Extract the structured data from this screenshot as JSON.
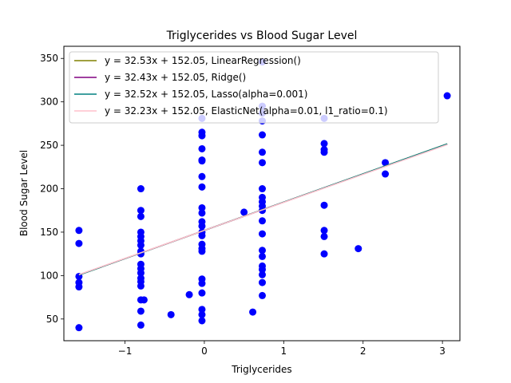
{
  "chart_data": {
    "type": "scatter",
    "title": "Triglycerides vs Blood Sugar Level",
    "xlabel": "Triglycerides",
    "ylabel": "Blood Sugar Level",
    "xlim": [
      -1.77,
      3.22
    ],
    "ylim": [
      25,
      364
    ],
    "xticks": [
      -1,
      0,
      1,
      2,
      3
    ],
    "xtick_labels": [
      "−1",
      "0",
      "1",
      "2",
      "3"
    ],
    "yticks": [
      50,
      100,
      150,
      200,
      250,
      300,
      350
    ],
    "ytick_labels": [
      "50",
      "100",
      "150",
      "200",
      "250",
      "300",
      "350"
    ],
    "grid": false,
    "legend_position": "top-left",
    "point_color": "#0000ff",
    "points": [
      {
        "x": -1.58,
        "y": 152
      },
      {
        "x": -1.58,
        "y": 137
      },
      {
        "x": -1.58,
        "y": 99
      },
      {
        "x": -1.58,
        "y": 92
      },
      {
        "x": -1.58,
        "y": 87
      },
      {
        "x": -1.58,
        "y": 40
      },
      {
        "x": -0.8,
        "y": 200
      },
      {
        "x": -0.8,
        "y": 175
      },
      {
        "x": -0.8,
        "y": 168
      },
      {
        "x": -0.8,
        "y": 150
      },
      {
        "x": -0.8,
        "y": 145
      },
      {
        "x": -0.8,
        "y": 140
      },
      {
        "x": -0.8,
        "y": 135
      },
      {
        "x": -0.8,
        "y": 128
      },
      {
        "x": -0.8,
        "y": 125
      },
      {
        "x": -0.8,
        "y": 113
      },
      {
        "x": -0.8,
        "y": 108
      },
      {
        "x": -0.8,
        "y": 103
      },
      {
        "x": -0.8,
        "y": 97
      },
      {
        "x": -0.8,
        "y": 93
      },
      {
        "x": -0.8,
        "y": 88
      },
      {
        "x": -0.8,
        "y": 72
      },
      {
        "x": -0.76,
        "y": 72
      },
      {
        "x": -0.8,
        "y": 59
      },
      {
        "x": -0.8,
        "y": 43
      },
      {
        "x": -0.42,
        "y": 55
      },
      {
        "x": -0.19,
        "y": 78
      },
      {
        "x": -0.03,
        "y": 281
      },
      {
        "x": -0.03,
        "y": 265
      },
      {
        "x": -0.03,
        "y": 261
      },
      {
        "x": -0.03,
        "y": 246
      },
      {
        "x": -0.03,
        "y": 233
      },
      {
        "x": -0.03,
        "y": 232
      },
      {
        "x": -0.03,
        "y": 214
      },
      {
        "x": -0.03,
        "y": 202
      },
      {
        "x": -0.03,
        "y": 178
      },
      {
        "x": -0.03,
        "y": 172
      },
      {
        "x": -0.03,
        "y": 162
      },
      {
        "x": -0.03,
        "y": 157
      },
      {
        "x": -0.03,
        "y": 150
      },
      {
        "x": -0.03,
        "y": 146
      },
      {
        "x": -0.03,
        "y": 136
      },
      {
        "x": -0.03,
        "y": 131
      },
      {
        "x": -0.03,
        "y": 128
      },
      {
        "x": -0.03,
        "y": 96
      },
      {
        "x": -0.03,
        "y": 91
      },
      {
        "x": -0.03,
        "y": 80
      },
      {
        "x": -0.03,
        "y": 61
      },
      {
        "x": -0.03,
        "y": 55
      },
      {
        "x": -0.03,
        "y": 48
      },
      {
        "x": 0.5,
        "y": 173
      },
      {
        "x": 0.61,
        "y": 58
      },
      {
        "x": 0.73,
        "y": 346
      },
      {
        "x": 0.73,
        "y": 295
      },
      {
        "x": 0.73,
        "y": 287
      },
      {
        "x": 0.73,
        "y": 278
      },
      {
        "x": 0.73,
        "y": 262
      },
      {
        "x": 0.73,
        "y": 242
      },
      {
        "x": 0.73,
        "y": 230
      },
      {
        "x": 0.73,
        "y": 200
      },
      {
        "x": 0.73,
        "y": 190
      },
      {
        "x": 0.73,
        "y": 185
      },
      {
        "x": 0.73,
        "y": 180
      },
      {
        "x": 0.73,
        "y": 175
      },
      {
        "x": 0.73,
        "y": 163
      },
      {
        "x": 0.73,
        "y": 148
      },
      {
        "x": 0.73,
        "y": 129
      },
      {
        "x": 0.73,
        "y": 122
      },
      {
        "x": 0.73,
        "y": 111
      },
      {
        "x": 0.73,
        "y": 107
      },
      {
        "x": 0.73,
        "y": 101
      },
      {
        "x": 0.73,
        "y": 92
      },
      {
        "x": 0.73,
        "y": 77
      },
      {
        "x": 1.51,
        "y": 281
      },
      {
        "x": 1.51,
        "y": 252
      },
      {
        "x": 1.51,
        "y": 245
      },
      {
        "x": 1.51,
        "y": 242
      },
      {
        "x": 1.51,
        "y": 181
      },
      {
        "x": 1.51,
        "y": 152
      },
      {
        "x": 1.51,
        "y": 145
      },
      {
        "x": 1.51,
        "y": 125
      },
      {
        "x": 1.94,
        "y": 131
      },
      {
        "x": 2.28,
        "y": 230
      },
      {
        "x": 2.28,
        "y": 217
      },
      {
        "x": 3.06,
        "y": 307
      }
    ],
    "lines": [
      {
        "label": "y = 32.53x + 152.05, LinearRegression()",
        "slope": 32.53,
        "intercept": 152.05,
        "color": "#808000"
      },
      {
        "label": "y = 32.43x + 152.05, Ridge()",
        "slope": 32.43,
        "intercept": 152.05,
        "color": "#800080"
      },
      {
        "label": "y = 32.52x + 152.05, Lasso(alpha=0.001)",
        "slope": 32.52,
        "intercept": 152.05,
        "color": "#008080"
      },
      {
        "label": "y = 32.23x + 152.05, ElasticNet(alpha=0.01, l1_ratio=0.1)",
        "slope": 32.23,
        "intercept": 152.05,
        "color": "#ffc0cb"
      }
    ],
    "line_x_range": [
      -1.58,
      3.06
    ]
  }
}
